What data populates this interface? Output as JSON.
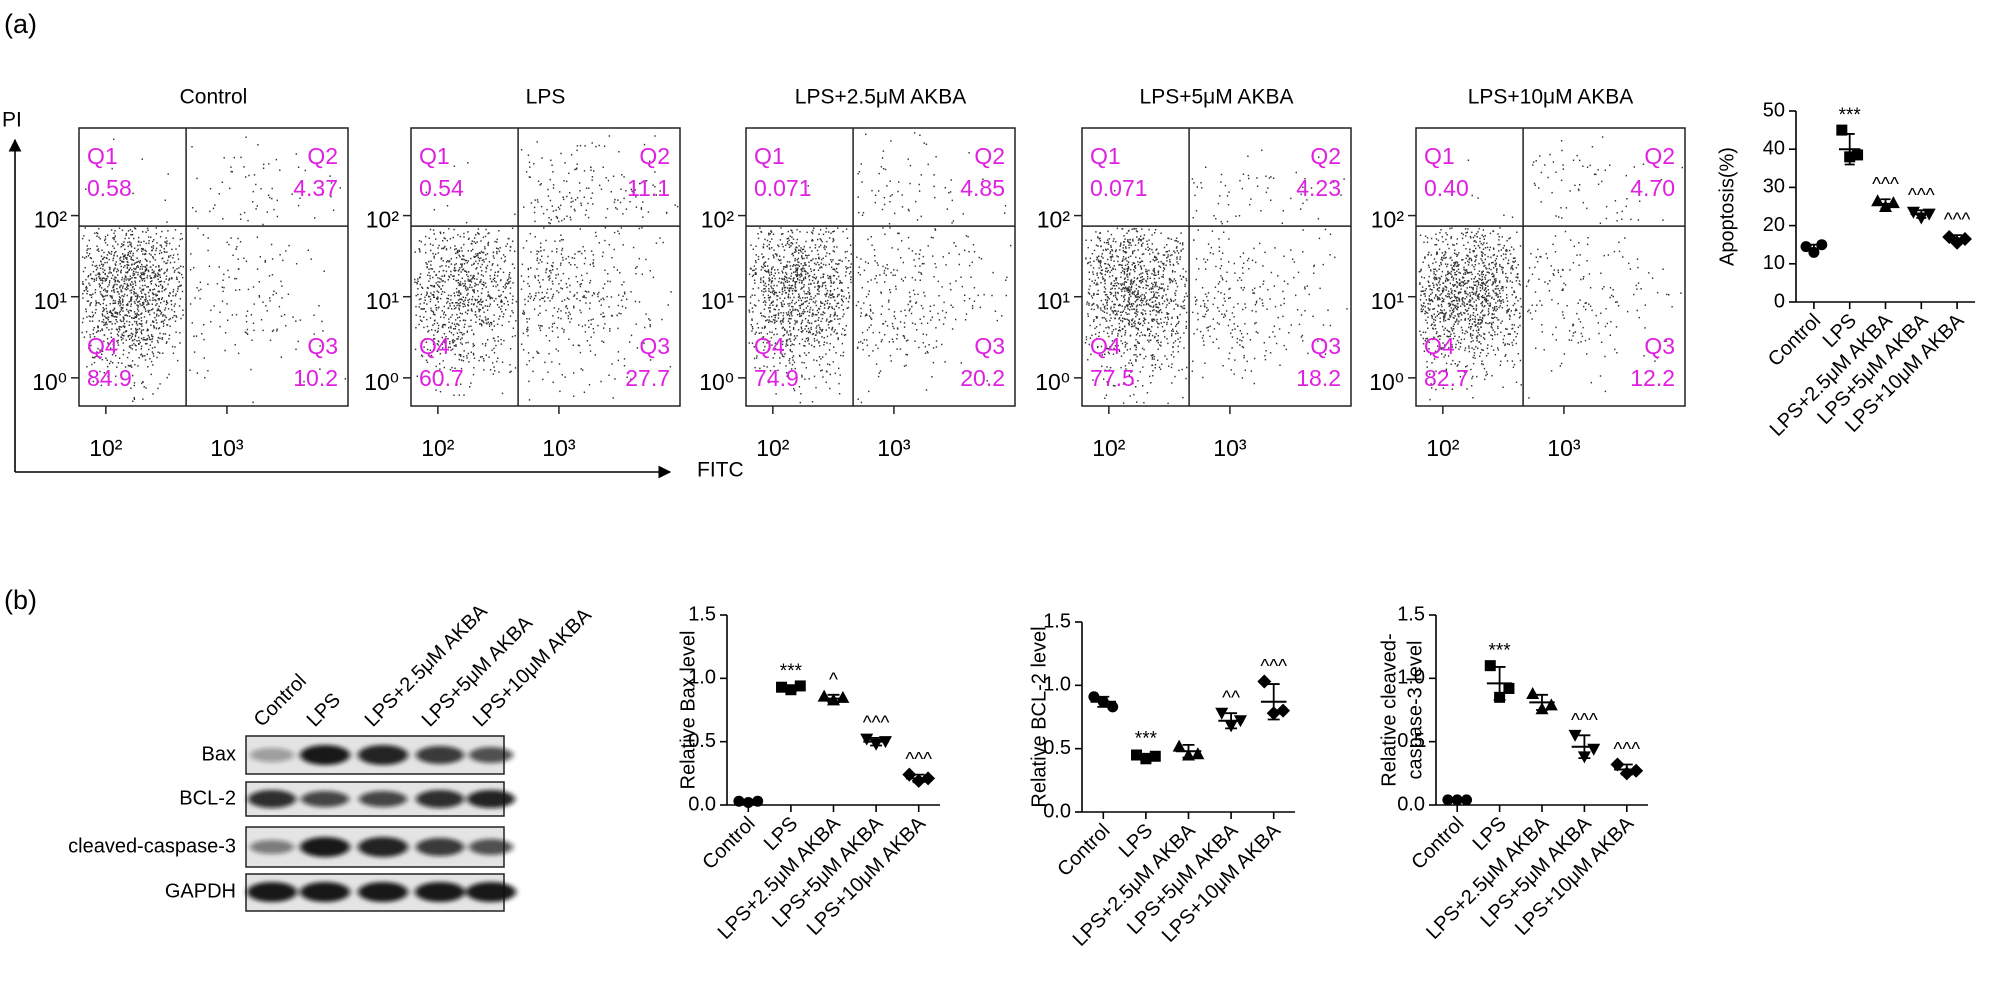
{
  "panel_labels": [
    "(a)",
    "(b)"
  ],
  "flow_axes": {
    "y_label": "PI",
    "x_label": "FITC"
  },
  "blot": {
    "lanes": [
      "Control",
      "LPS",
      "LPS+2.5μM AKBA",
      "LPS+5μM AKBA",
      "LPS+10μM AKBA"
    ],
    "rows": [
      "Bax",
      "BCL-2",
      "cleaved-caspase-3",
      "GAPDH"
    ]
  },
  "chart_data": [
    {
      "type": "quadrant",
      "title": "Control",
      "scale": "log",
      "quadrants": [
        "Q1",
        "Q2",
        "Q3",
        "Q4"
      ],
      "values": [
        0.58,
        4.37,
        10.2,
        84.9
      ],
      "color": "#e020e0",
      "xlim": [
        60,
        10000
      ],
      "ylim": [
        0.45,
        1200
      ],
      "gate_x": 460,
      "gate_y": 74,
      "xticks": [
        {
          "value": 100,
          "label": "10²"
        },
        {
          "value": 1000,
          "label": "10³"
        }
      ],
      "yticks": [
        {
          "value": 1,
          "label": "10⁰"
        },
        {
          "value": 10,
          "label": "10¹"
        },
        {
          "value": 100,
          "label": "10²"
        }
      ]
    },
    {
      "type": "quadrant",
      "title": "LPS",
      "scale": "log",
      "quadrants": [
        "Q1",
        "Q2",
        "Q3",
        "Q4"
      ],
      "values": [
        0.54,
        11.1,
        27.7,
        60.7
      ],
      "color": "#e020e0",
      "xlim": [
        60,
        10000
      ],
      "ylim": [
        0.45,
        1200
      ],
      "gate_x": 460,
      "gate_y": 74,
      "xticks": [
        {
          "value": 100,
          "label": "10²"
        },
        {
          "value": 1000,
          "label": "10³"
        }
      ],
      "yticks": [
        {
          "value": 1,
          "label": "10⁰"
        },
        {
          "value": 10,
          "label": "10¹"
        },
        {
          "value": 100,
          "label": "10²"
        }
      ]
    },
    {
      "type": "quadrant",
      "title": "LPS+2.5μM AKBA",
      "scale": "log",
      "quadrants": [
        "Q1",
        "Q2",
        "Q3",
        "Q4"
      ],
      "values": [
        0.071,
        4.85,
        20.2,
        74.9
      ],
      "color": "#e020e0",
      "xlim": [
        60,
        10000
      ],
      "ylim": [
        0.45,
        1200
      ],
      "gate_x": 460,
      "gate_y": 74,
      "xticks": [
        {
          "value": 100,
          "label": "10²"
        },
        {
          "value": 1000,
          "label": "10³"
        }
      ],
      "yticks": [
        {
          "value": 1,
          "label": "10⁰"
        },
        {
          "value": 10,
          "label": "10¹"
        },
        {
          "value": 100,
          "label": "10²"
        }
      ]
    },
    {
      "type": "quadrant",
      "title": "LPS+5μM AKBA",
      "scale": "log",
      "quadrants": [
        "Q1",
        "Q2",
        "Q3",
        "Q4"
      ],
      "values": [
        0.071,
        4.23,
        18.2,
        77.5
      ],
      "color": "#e020e0",
      "xlim": [
        60,
        10000
      ],
      "ylim": [
        0.45,
        1200
      ],
      "gate_x": 460,
      "gate_y": 74,
      "xticks": [
        {
          "value": 100,
          "label": "10²"
        },
        {
          "value": 1000,
          "label": "10³"
        }
      ],
      "yticks": [
        {
          "value": 1,
          "label": "10⁰"
        },
        {
          "value": 10,
          "label": "10¹"
        },
        {
          "value": 100,
          "label": "10²"
        }
      ]
    },
    {
      "type": "quadrant",
      "title": "LPS+10μM AKBA",
      "scale": "log",
      "quadrants": [
        "Q1",
        "Q2",
        "Q3",
        "Q4"
      ],
      "values": [
        0.4,
        4.7,
        12.2,
        82.7
      ],
      "value_labels": [
        "0.40",
        "4.70",
        "12.2",
        "82.7"
      ],
      "color": "#e020e0",
      "xlim": [
        60,
        10000
      ],
      "ylim": [
        0.45,
        1200
      ],
      "gate_x": 460,
      "gate_y": 74,
      "xticks": [
        {
          "value": 100,
          "label": "10²"
        },
        {
          "value": 1000,
          "label": "10³"
        }
      ],
      "yticks": [
        {
          "value": 1,
          "label": "10⁰"
        },
        {
          "value": 10,
          "label": "10¹"
        },
        {
          "value": 100,
          "label": "10²"
        }
      ]
    },
    {
      "type": "dotplot",
      "y_label": [
        "Apoptosis(%)"
      ],
      "color": "#000000",
      "categories": [
        "Control",
        "LPS",
        "LPS+2.5μM AKBA",
        "LPS+5μM AKBA",
        "LPS+10μM AKBA"
      ],
      "markers": [
        "circle",
        "square",
        "triangle-up",
        "triangle-down",
        "diamond"
      ],
      "points": [
        [
          14.5,
          13,
          15
        ],
        [
          45,
          38,
          38.5
        ],
        [
          26.5,
          25,
          26
        ],
        [
          23.5,
          22,
          23
        ],
        [
          17,
          15.5,
          16.5
        ]
      ],
      "means": [
        14,
        40,
        25.7,
        23,
        16.5
      ],
      "sd": [
        1,
        4,
        1.2,
        1,
        1
      ],
      "annotations": [
        null,
        "***",
        "^^^",
        "^^^",
        "^^^"
      ],
      "ylim": [
        0,
        50
      ],
      "yticks": [
        0,
        10,
        20,
        30,
        40,
        50
      ]
    },
    {
      "type": "dotplot",
      "y_label": [
        "Relative Bax level"
      ],
      "color": "#000000",
      "categories": [
        "Control",
        "LPS",
        "LPS+2.5μM AKBA",
        "LPS+5μM AKBA",
        "LPS+10μM AKBA"
      ],
      "markers": [
        "circle",
        "square",
        "triangle-up",
        "triangle-down",
        "diamond"
      ],
      "points": [
        [
          0.03,
          0.02,
          0.03
        ],
        [
          0.93,
          0.91,
          0.94
        ],
        [
          0.86,
          0.83,
          0.85
        ],
        [
          0.52,
          0.48,
          0.5
        ],
        [
          0.24,
          0.19,
          0.21
        ]
      ],
      "means": [
        0.02,
        0.92,
        0.84,
        0.5,
        0.21
      ],
      "sd": [
        0.01,
        0.02,
        0.03,
        0.03,
        0.03
      ],
      "annotations": [
        null,
        "***",
        "^",
        "^^^",
        "^^^"
      ],
      "ylim": [
        0,
        1.5
      ],
      "yticks": [
        {
          "value": 0,
          "label": "0.0"
        },
        0.5,
        {
          "value": 1,
          "label": "1.0"
        },
        1.5
      ]
    },
    {
      "type": "dotplot",
      "y_label": [
        "Relative BCL-2 level"
      ],
      "color": "#000000",
      "categories": [
        "Control",
        "LPS",
        "LPS+2.5μM AKBA",
        "LPS+5μM AKBA",
        "LPS+10μM AKBA"
      ],
      "markers": [
        "circle",
        "square",
        "triangle-up",
        "triangle-down",
        "diamond"
      ],
      "points": [
        [
          0.91,
          0.87,
          0.83
        ],
        [
          0.45,
          0.42,
          0.44
        ],
        [
          0.52,
          0.45,
          0.46
        ],
        [
          0.78,
          0.68,
          0.72
        ],
        [
          1.03,
          0.78,
          0.8
        ]
      ],
      "means": [
        0.87,
        0.44,
        0.48,
        0.72,
        0.87
      ],
      "sd": [
        0.04,
        0.02,
        0.05,
        0.06,
        0.14
      ],
      "annotations": [
        null,
        "***",
        null,
        "^^",
        "^^^"
      ],
      "ylim": [
        0,
        1.5
      ],
      "yticks": [
        {
          "value": 0,
          "label": "0.0"
        },
        0.5,
        {
          "value": 1,
          "label": "1.0"
        },
        1.5
      ]
    },
    {
      "type": "dotplot",
      "y_label": [
        "Relative cleaved-",
        "caspase-3 level"
      ],
      "color": "#000000",
      "categories": [
        "Control",
        "LPS",
        "LPS+2.5μM AKBA",
        "LPS+5μM AKBA",
        "LPS+10μM AKBA"
      ],
      "markers": [
        "circle",
        "square",
        "triangle-up",
        "triangle-down",
        "diamond"
      ],
      "points": [
        [
          0.04,
          0.04,
          0.04
        ],
        [
          1.1,
          0.85,
          0.92
        ],
        [
          0.88,
          0.76,
          0.79
        ],
        [
          0.55,
          0.38,
          0.44
        ],
        [
          0.32,
          0.25,
          0.27
        ]
      ],
      "means": [
        0.04,
        0.96,
        0.81,
        0.46,
        0.28
      ],
      "sd": [
        0.005,
        0.13,
        0.06,
        0.09,
        0.04
      ],
      "annotations": [
        null,
        "***",
        null,
        "^^^",
        "^^^"
      ],
      "ylim": [
        0,
        1.5
      ],
      "yticks": [
        {
          "value": 0,
          "label": "0.0"
        },
        0.5,
        {
          "value": 1,
          "label": "1.0"
        },
        1.5
      ]
    }
  ]
}
